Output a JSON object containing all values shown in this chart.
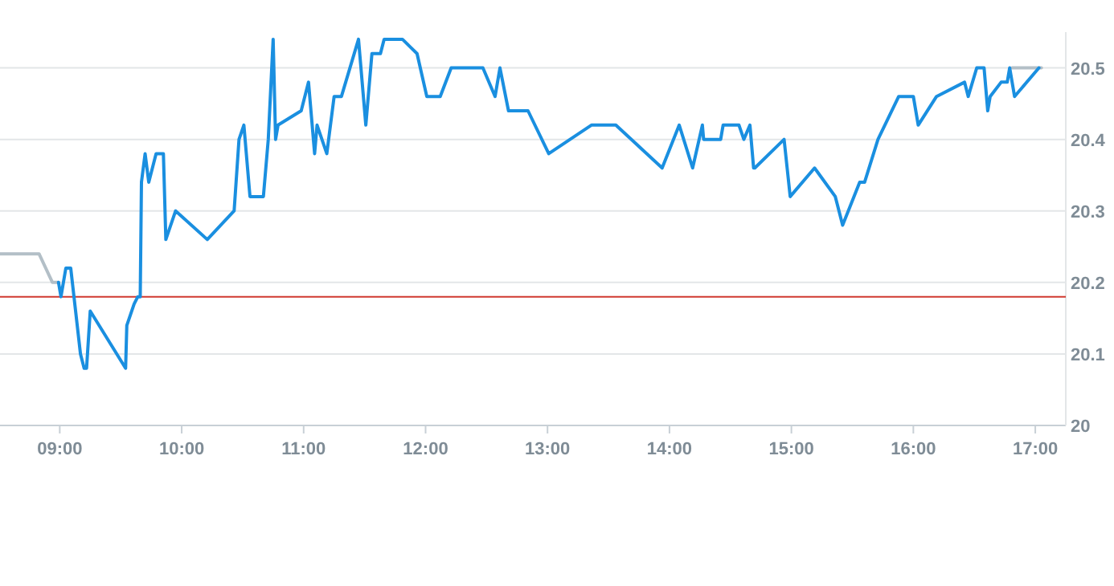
{
  "chart_data": {
    "type": "line",
    "xlim": [
      8.51,
      17.25
    ],
    "xticks": [
      {
        "value": 9,
        "label": "09:00"
      },
      {
        "value": 10,
        "label": "10:00"
      },
      {
        "value": 11,
        "label": "11:00"
      },
      {
        "value": 12,
        "label": "12:00"
      },
      {
        "value": 13,
        "label": "13:00"
      },
      {
        "value": 14,
        "label": "14:00"
      },
      {
        "value": 15,
        "label": "15:00"
      },
      {
        "value": 16,
        "label": "16:00"
      },
      {
        "value": 17,
        "label": "17:00"
      }
    ],
    "ylim": [
      20,
      20.55
    ],
    "yticks": [
      20,
      20.1,
      20.2,
      20.3,
      20.4,
      20.5
    ],
    "grid": "y",
    "marker": "none",
    "line_style": "solid",
    "ref_lines": [
      {
        "axis": "y",
        "value": 20.18,
        "color": "#d0392f"
      }
    ],
    "series": [
      {
        "color": "#b3bfc7",
        "x": [
          8.51,
          8.83,
          8.94,
          8.99
        ],
        "values": [
          20.24,
          20.24,
          20.2,
          20.2
        ]
      },
      {
        "color": "#b3bfc7",
        "x": [
          16.81,
          17.05
        ],
        "values": [
          20.5,
          20.5
        ]
      },
      {
        "color": "#1a8fe0",
        "x": [
          8.99,
          9.01,
          9.05,
          9.09,
          9.17,
          9.2,
          9.22,
          9.25,
          9.54,
          9.55,
          9.61,
          9.64,
          9.66,
          9.67,
          9.7,
          9.73,
          9.79,
          9.85,
          9.87,
          9.95,
          10.21,
          10.43,
          10.47,
          10.51,
          10.56,
          10.67,
          10.71,
          10.75,
          10.77,
          10.79,
          10.98,
          11.04,
          11.09,
          11.11,
          11.19,
          11.25,
          11.31,
          11.45,
          11.51,
          11.56,
          11.63,
          11.66,
          11.81,
          11.87,
          11.93,
          12.01,
          12.12,
          12.21,
          12.47,
          12.57,
          12.61,
          12.68,
          12.84,
          13.01,
          13.36,
          13.56,
          13.94,
          14.08,
          14.19,
          14.27,
          14.28,
          14.42,
          14.44,
          14.57,
          14.61,
          14.66,
          14.69,
          14.7,
          14.94,
          14.99,
          15.19,
          15.36,
          15.42,
          15.56,
          15.6,
          15.71,
          15.88,
          16.0,
          16.04,
          16.19,
          16.42,
          16.45,
          16.52,
          16.58,
          16.61,
          16.63,
          16.72,
          16.77,
          16.79,
          16.83,
          17.03
        ],
        "values": [
          20.2,
          20.18,
          20.22,
          20.22,
          20.1,
          20.08,
          20.08,
          20.16,
          20.08,
          20.14,
          20.17,
          20.18,
          20.18,
          20.34,
          20.38,
          20.34,
          20.38,
          20.38,
          20.26,
          20.3,
          20.26,
          20.3,
          20.4,
          20.42,
          20.32,
          20.32,
          20.4,
          20.54,
          20.4,
          20.42,
          20.44,
          20.48,
          20.38,
          20.42,
          20.38,
          20.46,
          20.46,
          20.54,
          20.42,
          20.52,
          20.52,
          20.54,
          20.54,
          20.53,
          20.52,
          20.46,
          20.46,
          20.5,
          20.5,
          20.46,
          20.5,
          20.44,
          20.44,
          20.38,
          20.42,
          20.42,
          20.36,
          20.42,
          20.36,
          20.42,
          20.4,
          20.4,
          20.42,
          20.42,
          20.4,
          20.42,
          20.36,
          20.36,
          20.4,
          20.32,
          20.36,
          20.32,
          20.28,
          20.34,
          20.34,
          20.4,
          20.46,
          20.46,
          20.42,
          20.46,
          20.48,
          20.46,
          20.5,
          20.5,
          20.44,
          20.46,
          20.48,
          20.48,
          20.5,
          20.46,
          20.5
        ]
      }
    ]
  }
}
